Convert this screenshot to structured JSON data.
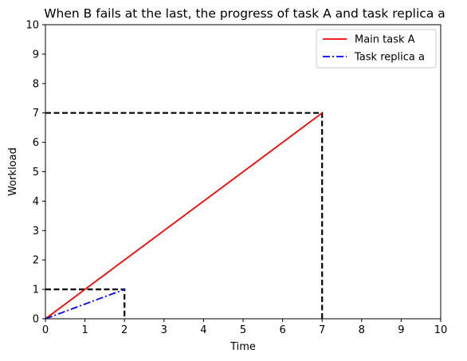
{
  "chart_data": {
    "type": "line",
    "title": "When B fails at the last, the progress of task A and task replica a",
    "xlabel": "Time",
    "ylabel": "Workload",
    "xlim": [
      0,
      10
    ],
    "ylim": [
      0,
      10
    ],
    "xticks": [
      "0",
      "1",
      "2",
      "3",
      "4",
      "5",
      "6",
      "7",
      "8",
      "9",
      "10"
    ],
    "yticks": [
      "0",
      "1",
      "2",
      "3",
      "4",
      "5",
      "6",
      "7",
      "8",
      "9",
      "10"
    ],
    "grid": false,
    "legend_position": "top-right",
    "series": [
      {
        "name": "Main task A",
        "color": "#ff0000",
        "style": "solid",
        "x": [
          0,
          7
        ],
        "y": [
          0,
          7
        ]
      },
      {
        "name": "Task replica a",
        "color": "#0000ff",
        "style": "dashdot",
        "x": [
          0,
          2
        ],
        "y": [
          0,
          1
        ]
      }
    ],
    "reference_lines": [
      {
        "color": "#000000",
        "style": "dashed",
        "x": [
          0,
          7,
          7
        ],
        "y": [
          7,
          7,
          0
        ]
      },
      {
        "color": "#000000",
        "style": "dashed",
        "x": [
          0,
          2,
          2
        ],
        "y": [
          1,
          1,
          0
        ]
      }
    ]
  }
}
